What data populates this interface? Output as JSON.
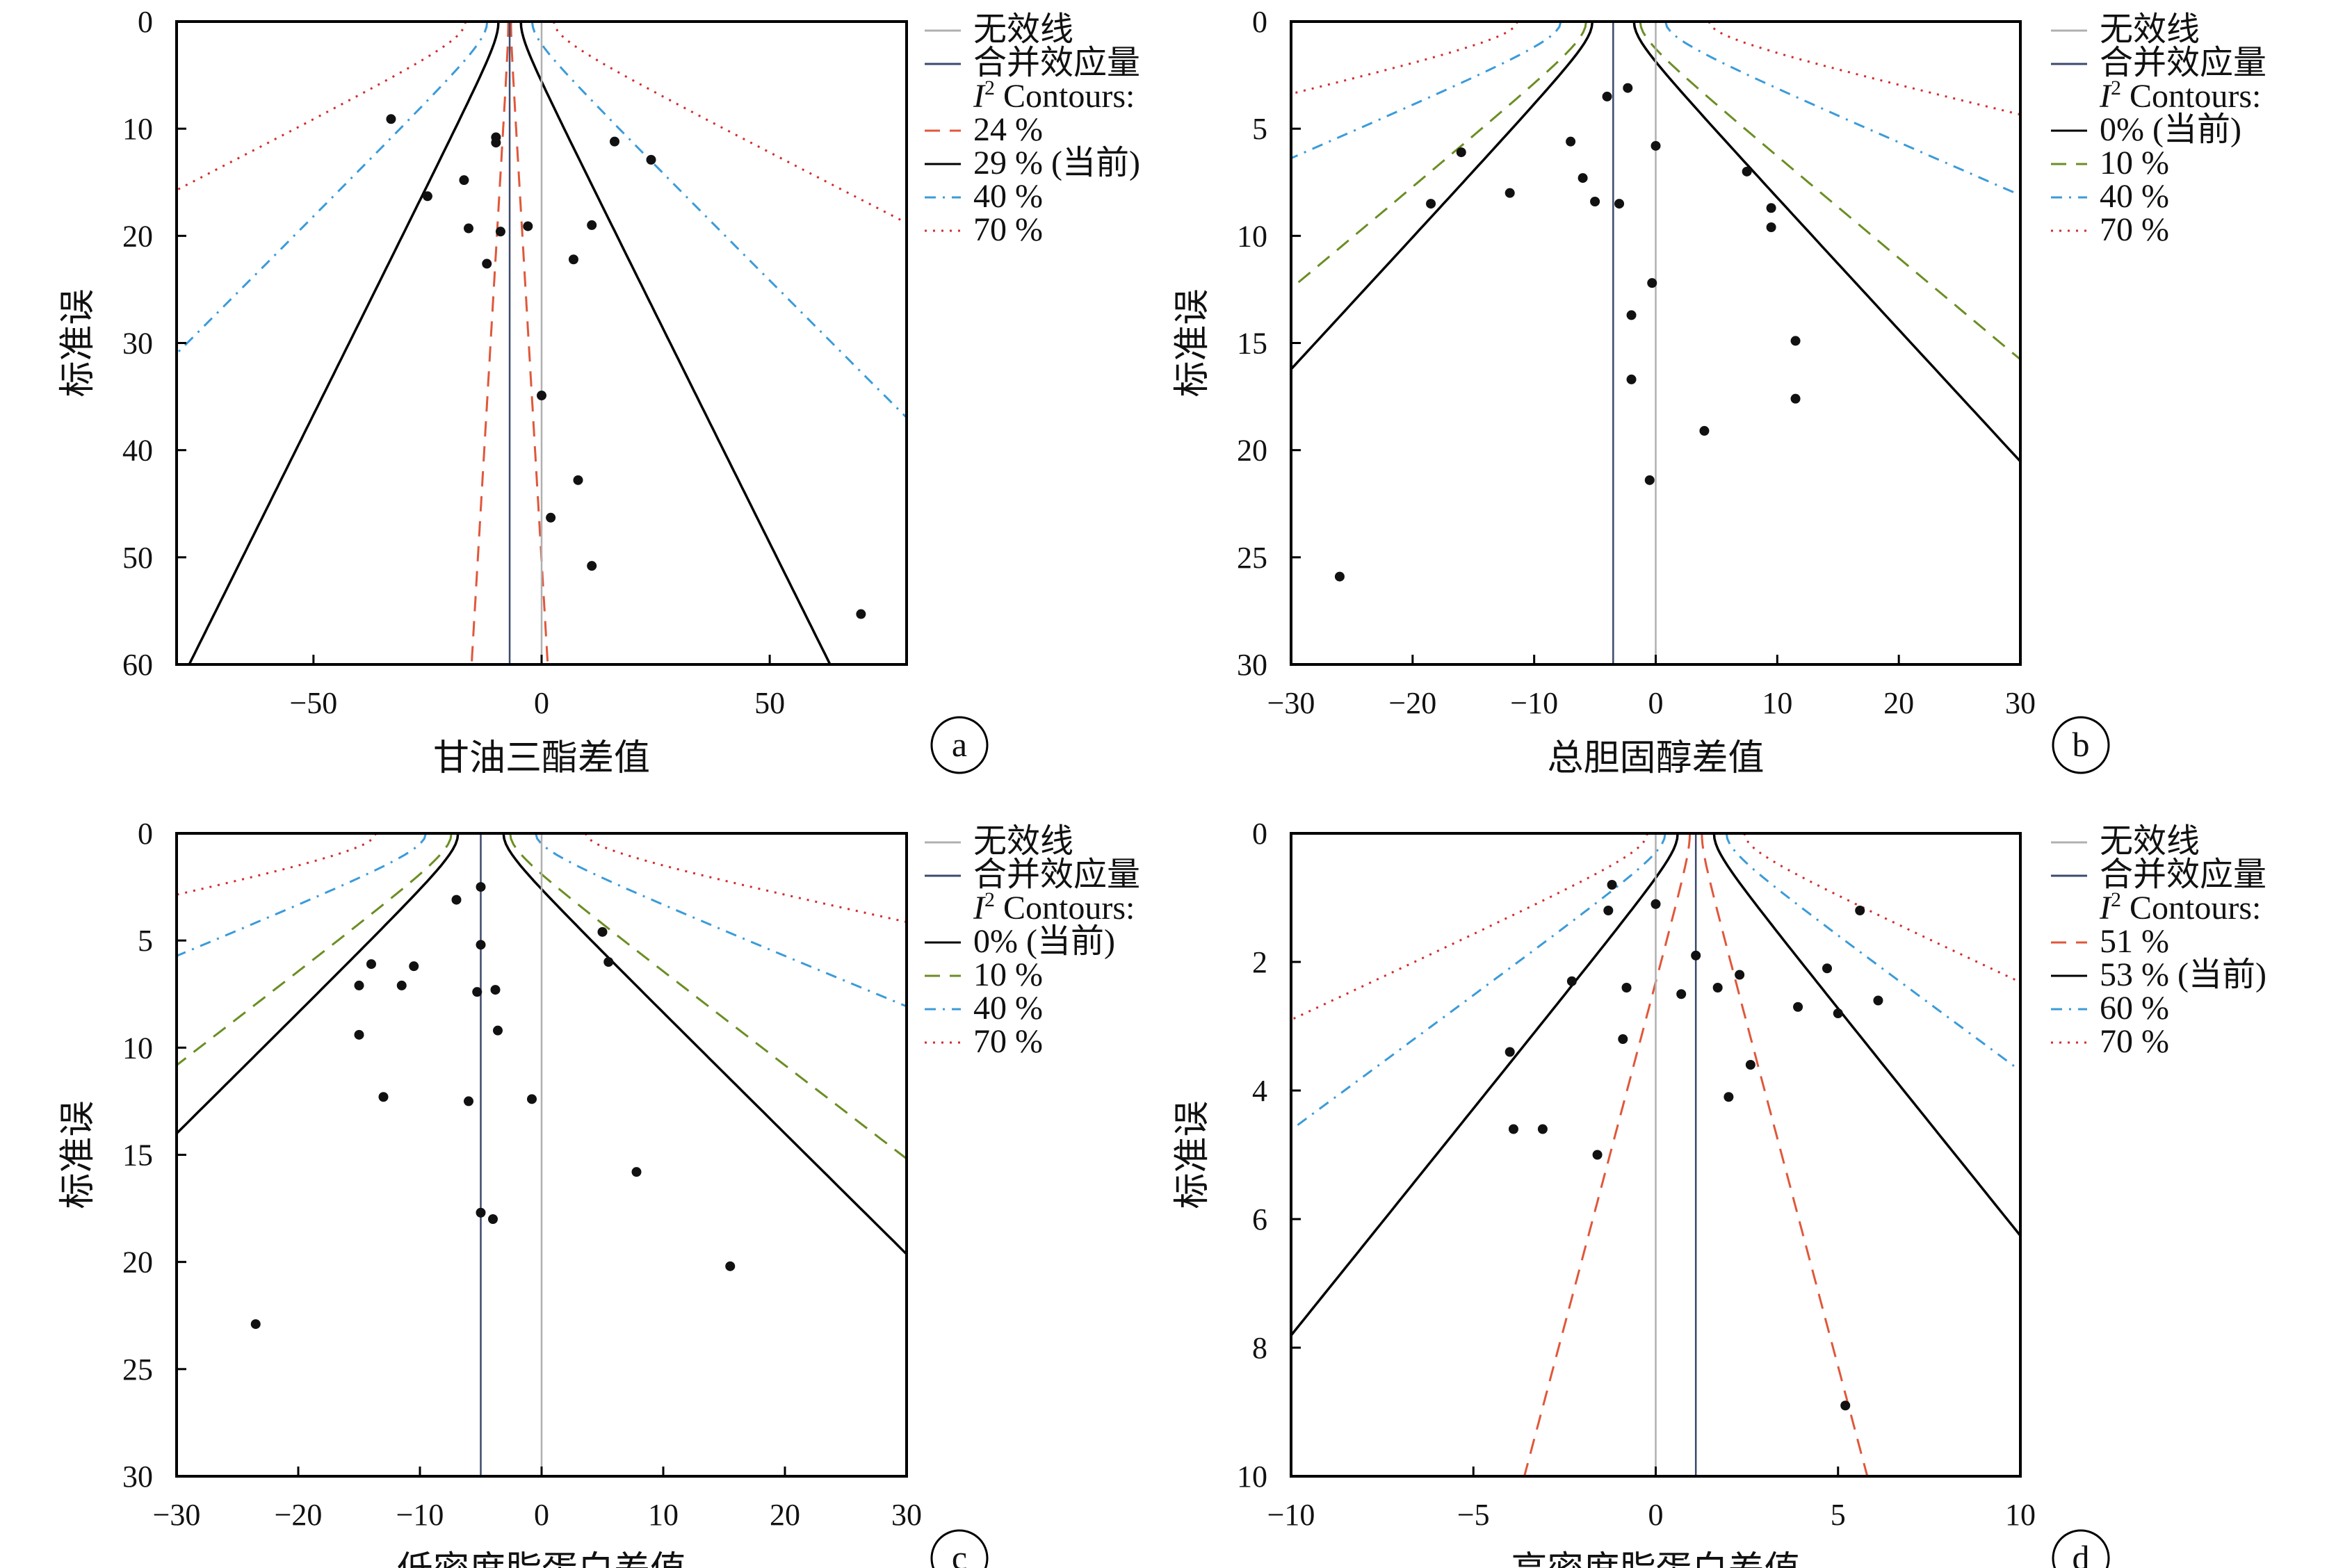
{
  "chart_data": [
    {
      "panel": "a",
      "type": "scatter",
      "xlabel": "甘油三酯差值",
      "ylabel": "标准误",
      "xlim": [
        -80,
        80
      ],
      "ylim": [
        0,
        60
      ],
      "y_inverted": true,
      "xticks": [
        -50,
        0,
        50
      ],
      "yticks": [
        0,
        10,
        20,
        30,
        40,
        50,
        60
      ],
      "null_line": 0,
      "pooled_effect": -7,
      "legend": {
        "null_line": "无效线",
        "pooled_effect": "合并效应量",
        "contours_prefix": "I",
        "contours_sup": "2",
        "contours_suffix": " Contours:"
      },
      "contours": [
        {
          "label": "24 %",
          "style": "dashed",
          "color": "#e0573a",
          "slope": 0.139
        },
        {
          "label": "29 % (当前)",
          "style": "solid",
          "color": "#000000",
          "slope": 1.17
        },
        {
          "label": "40 %",
          "style": "dashdot",
          "color": "#3b9bd9",
          "slope": 2.35
        },
        {
          "label": "70 %",
          "style": "dotted",
          "color": "#d22d2d",
          "slope": 4.6
        }
      ],
      "points": [
        {
          "x": -33,
          "y": 9.1
        },
        {
          "x": -25,
          "y": 16.3
        },
        {
          "x": -17,
          "y": 14.8
        },
        {
          "x": -16,
          "y": 19.3
        },
        {
          "x": -12,
          "y": 22.6
        },
        {
          "x": -10,
          "y": 11.3
        },
        {
          "x": -10,
          "y": 10.8
        },
        {
          "x": -9,
          "y": 19.6
        },
        {
          "x": -3,
          "y": 19.1
        },
        {
          "x": 0,
          "y": 34.9
        },
        {
          "x": 2,
          "y": 46.3
        },
        {
          "x": 7,
          "y": 22.2
        },
        {
          "x": 8,
          "y": 42.8
        },
        {
          "x": 11,
          "y": 19.0
        },
        {
          "x": 11,
          "y": 50.8
        },
        {
          "x": 16,
          "y": 11.2
        },
        {
          "x": 24,
          "y": 12.9
        },
        {
          "x": 70,
          "y": 55.3
        }
      ]
    },
    {
      "panel": "b",
      "type": "scatter",
      "xlabel": "总胆固醇差值",
      "ylabel": "标准误",
      "xlim": [
        -30,
        30
      ],
      "ylim": [
        0,
        30
      ],
      "y_inverted": true,
      "xticks": [
        -30,
        -20,
        -10,
        0,
        10,
        20,
        30
      ],
      "yticks": [
        0,
        5,
        10,
        15,
        20,
        25,
        30
      ],
      "null_line": 0,
      "pooled_effect": -3.5,
      "legend": {
        "null_line": "无效线",
        "pooled_effect": "合并效应量",
        "contours_prefix": "I",
        "contours_sup": "2",
        "contours_suffix": " Contours:"
      },
      "contours": [
        {
          "label": "0% (当前)",
          "style": "solid",
          "color": "#000000",
          "slope": 1.63
        },
        {
          "label": "10 %",
          "style": "dashed",
          "color": "#6b8e23",
          "slope": 2.12
        },
        {
          "label": "40 %",
          "style": "dashdot",
          "color": "#3b9bd9",
          "slope": 4.1
        },
        {
          "label": "70 %",
          "style": "dotted",
          "color": "#d22d2d",
          "slope": 7.5
        }
      ],
      "points": [
        {
          "x": -26,
          "y": 25.9
        },
        {
          "x": -18.5,
          "y": 8.5
        },
        {
          "x": -16,
          "y": 6.1
        },
        {
          "x": -12,
          "y": 8.0
        },
        {
          "x": -7,
          "y": 5.6
        },
        {
          "x": -6,
          "y": 7.3
        },
        {
          "x": -5,
          "y": 8.4
        },
        {
          "x": -4,
          "y": 3.5
        },
        {
          "x": -3,
          "y": 8.5
        },
        {
          "x": -2.3,
          "y": 3.1
        },
        {
          "x": -2,
          "y": 13.7
        },
        {
          "x": -2,
          "y": 16.7
        },
        {
          "x": -0.5,
          "y": 21.4
        },
        {
          "x": -0.3,
          "y": 12.2
        },
        {
          "x": 0,
          "y": 5.8
        },
        {
          "x": 4,
          "y": 19.1
        },
        {
          "x": 7.5,
          "y": 7.0
        },
        {
          "x": 9.5,
          "y": 8.7
        },
        {
          "x": 9.5,
          "y": 9.6
        },
        {
          "x": 11.5,
          "y": 14.9
        },
        {
          "x": 11.5,
          "y": 17.6
        }
      ]
    },
    {
      "panel": "c",
      "type": "scatter",
      "xlabel": "低密度脂蛋白差值",
      "ylabel": "标准误",
      "xlim": [
        -30,
        30
      ],
      "ylim": [
        0,
        30
      ],
      "y_inverted": true,
      "xticks": [
        -30,
        -20,
        -10,
        0,
        10,
        20,
        30
      ],
      "yticks": [
        0,
        5,
        10,
        15,
        20,
        25,
        30
      ],
      "null_line": 0,
      "pooled_effect": -5,
      "legend": {
        "null_line": "无效线",
        "pooled_effect": "合并效应量",
        "contours_prefix": "I",
        "contours_sup": "2",
        "contours_suffix": " Contours:"
      },
      "contours": [
        {
          "label": "0% (当前)",
          "style": "solid",
          "color": "#000000",
          "slope": 1.78
        },
        {
          "label": "10 %",
          "style": "dashed",
          "color": "#6b8e23",
          "slope": 2.3
        },
        {
          "label": "40 %",
          "style": "dashdot",
          "color": "#3b9bd9",
          "slope": 4.3
        },
        {
          "label": "70 %",
          "style": "dotted",
          "color": "#d22d2d",
          "slope": 8.2
        }
      ],
      "points": [
        {
          "x": -23.5,
          "y": 22.9
        },
        {
          "x": -15,
          "y": 9.4
        },
        {
          "x": -15,
          "y": 7.1
        },
        {
          "x": -14,
          "y": 6.1
        },
        {
          "x": -13,
          "y": 12.3
        },
        {
          "x": -11.5,
          "y": 7.1
        },
        {
          "x": -10.5,
          "y": 6.2
        },
        {
          "x": -7,
          "y": 3.1
        },
        {
          "x": -6,
          "y": 12.5
        },
        {
          "x": -5.3,
          "y": 7.4
        },
        {
          "x": -5,
          "y": 17.7
        },
        {
          "x": -5,
          "y": 5.2
        },
        {
          "x": -5,
          "y": 2.5
        },
        {
          "x": -4,
          "y": 18.0
        },
        {
          "x": -3.8,
          "y": 7.3
        },
        {
          "x": -3.6,
          "y": 9.2
        },
        {
          "x": -0.8,
          "y": 12.4
        },
        {
          "x": 5,
          "y": 4.6
        },
        {
          "x": 5.5,
          "y": 6.0
        },
        {
          "x": 7.8,
          "y": 15.8
        },
        {
          "x": 15.5,
          "y": 20.2
        }
      ]
    },
    {
      "panel": "d",
      "type": "scatter",
      "xlabel": "高密度脂蛋白差值",
      "ylabel": "标准误",
      "xlim": [
        -10,
        10
      ],
      "ylim": [
        0,
        10
      ],
      "y_inverted": true,
      "xticks": [
        -10,
        -5,
        0,
        5,
        10
      ],
      "yticks": [
        0,
        2,
        4,
        6,
        8,
        10
      ],
      "null_line": 0,
      "pooled_effect": 1.1,
      "legend": {
        "null_line": "无效线",
        "pooled_effect": "合并效应量",
        "contours_prefix": "I",
        "contours_sup": "2",
        "contours_suffix": " Contours:"
      },
      "contours": [
        {
          "label": "51 %",
          "style": "dashed",
          "color": "#e0573a",
          "slope": 0.47
        },
        {
          "label": "53 % (当前)",
          "style": "solid",
          "color": "#000000",
          "slope": 1.42
        },
        {
          "label": "60 %",
          "style": "dashdot",
          "color": "#3b9bd9",
          "slope": 2.4
        },
        {
          "label": "70 %",
          "style": "dotted",
          "color": "#d22d2d",
          "slope": 3.8
        }
      ],
      "points": [
        {
          "x": -4,
          "y": 3.4
        },
        {
          "x": -3.9,
          "y": 4.6
        },
        {
          "x": -3.1,
          "y": 4.6
        },
        {
          "x": -1.6,
          "y": 5.0
        },
        {
          "x": -1.3,
          "y": 1.2
        },
        {
          "x": -1.2,
          "y": 0.8
        },
        {
          "x": -2.3,
          "y": 2.3
        },
        {
          "x": -0.9,
          "y": 3.2
        },
        {
          "x": -0.8,
          "y": 2.4
        },
        {
          "x": 0,
          "y": 1.1
        },
        {
          "x": 0.7,
          "y": 2.5
        },
        {
          "x": 1.1,
          "y": 1.9
        },
        {
          "x": 1.7,
          "y": 2.4
        },
        {
          "x": 2.0,
          "y": 4.1
        },
        {
          "x": 2.3,
          "y": 2.2
        },
        {
          "x": 2.6,
          "y": 3.6
        },
        {
          "x": 3.9,
          "y": 2.7
        },
        {
          "x": 4.7,
          "y": 2.1
        },
        {
          "x": 5.0,
          "y": 2.8
        },
        {
          "x": 5.2,
          "y": 8.9
        },
        {
          "x": 5.6,
          "y": 1.2
        },
        {
          "x": 6.1,
          "y": 2.6
        }
      ]
    }
  ],
  "colors": {
    "null_line": "#b0b0b0",
    "pooled_line": "#3c4a6e",
    "points": "#111111"
  }
}
